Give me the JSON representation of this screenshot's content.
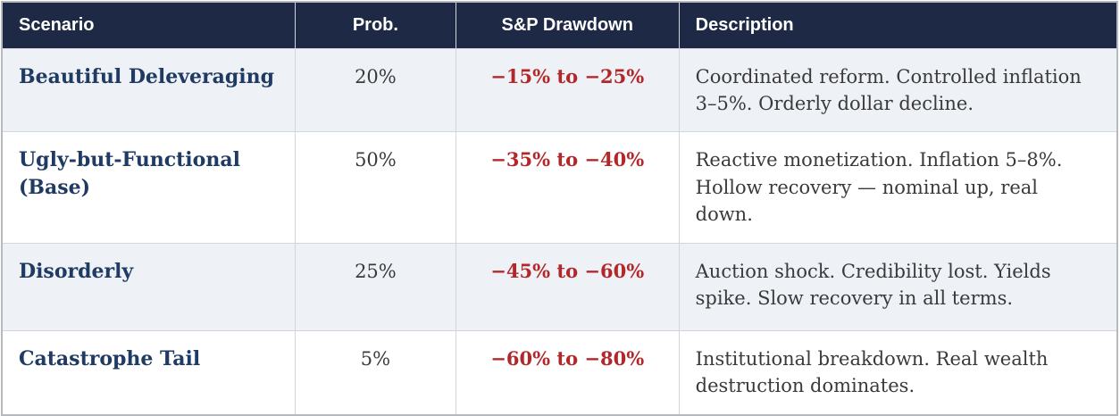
{
  "table": {
    "columns": [
      {
        "label": "Scenario",
        "align": "left"
      },
      {
        "label": "Prob.",
        "align": "center"
      },
      {
        "label": "S&P Drawdown",
        "align": "center"
      },
      {
        "label": "Description",
        "align": "left"
      }
    ],
    "rows": [
      {
        "scenario": "Beautiful Deleveraging",
        "prob": "20%",
        "drawdown": "−15% to −25%",
        "description": "Coordinated reform. Controlled inflation 3–5%. Orderly dollar decline."
      },
      {
        "scenario": "Ugly-but-Functional (Base)",
        "prob": "50%",
        "drawdown": "−35% to −40%",
        "description": "Reactive monetization. Inflation 5–8%. Hollow recovery — nominal up, real down."
      },
      {
        "scenario": "Disorderly",
        "prob": "25%",
        "drawdown": "−45% to −60%",
        "description": "Auction shock. Credibility lost. Yields spike. Slow recovery in all terms."
      },
      {
        "scenario": "Catastrophe Tail",
        "prob": "5%",
        "drawdown": "−60% to −80%",
        "description": "Institutional breakdown. Real wealth destruction dominates."
      }
    ]
  },
  "colors": {
    "header_bg": "#1e2a45",
    "header_text": "#ffffff",
    "scenario_text": "#1f3a63",
    "drawdown_text": "#b2282a",
    "body_text": "#3a3a3a",
    "row_alt_bg": "#eef1f6",
    "row_bg": "#ffffff",
    "border": "#d2d5da",
    "outer_border": "#b6b9be",
    "page_bg": "#ffffff"
  }
}
